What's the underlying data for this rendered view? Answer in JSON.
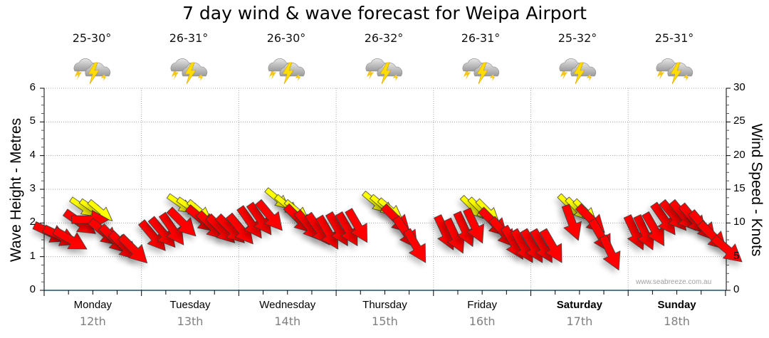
{
  "chart_data": {
    "type": "scatter",
    "title": "7 day wind & wave forecast for Weipa Airport",
    "ylabel_left": "Wave Height - Metres",
    "ylabel_right": "Wind Speed - Knots",
    "ylim_left": [
      0,
      6
    ],
    "ylim_right": [
      0,
      30
    ],
    "yticks_left": [
      "0",
      "1",
      "2",
      "3",
      "4",
      "5",
      "6"
    ],
    "yticks_right": [
      "0",
      "5",
      "10",
      "15",
      "20",
      "25",
      "30"
    ],
    "grid": true,
    "credit": "www.seabreeze.com.au",
    "days": [
      {
        "name": "Monday",
        "date": "12th",
        "temp": "25-30°",
        "icon": "thunderstorm-icon",
        "bold": false
      },
      {
        "name": "Tuesday",
        "date": "13th",
        "temp": "26-31°",
        "icon": "thunderstorm-icon",
        "bold": false
      },
      {
        "name": "Wednesday",
        "date": "14th",
        "temp": "26-30°",
        "icon": "thunderstorm-icon",
        "bold": false
      },
      {
        "name": "Thursday",
        "date": "15th",
        "temp": "26-32°",
        "icon": "thunderstorm-icon",
        "bold": false
      },
      {
        "name": "Friday",
        "date": "16th",
        "temp": "26-31°",
        "icon": "thunderstorm-icon",
        "bold": false
      },
      {
        "name": "Saturday",
        "date": "17th",
        "temp": "25-32°",
        "icon": "thunderstorm-icon",
        "bold": true
      },
      {
        "name": "Sunday",
        "date": "18th",
        "temp": "25-31°",
        "icon": "thunderstorm-icon",
        "bold": true
      }
    ],
    "series": [
      {
        "name": "Wind",
        "color": "#ff0000",
        "unit": "knots",
        "points": [
          {
            "t": 0.0,
            "v": 8.5,
            "dir": 25
          },
          {
            "t": 0.1,
            "v": 8.0,
            "dir": 25
          },
          {
            "t": 0.2,
            "v": 7.5,
            "dir": 30
          },
          {
            "t": 0.3,
            "v": 10.0,
            "dir": 35
          },
          {
            "t": 0.4,
            "v": 10.5,
            "dir": 0
          },
          {
            "t": 0.55,
            "v": 8.5,
            "dir": 40
          },
          {
            "t": 0.65,
            "v": 7.5,
            "dir": 45
          },
          {
            "t": 0.75,
            "v": 6.5,
            "dir": 45
          },
          {
            "t": 0.85,
            "v": 6.0,
            "dir": 45
          },
          {
            "t": 1.05,
            "v": 8.0,
            "dir": 50
          },
          {
            "t": 1.15,
            "v": 8.5,
            "dir": 50
          },
          {
            "t": 1.25,
            "v": 9.0,
            "dir": 55
          },
          {
            "t": 1.35,
            "v": 10.0,
            "dir": 45
          },
          {
            "t": 1.55,
            "v": 10.5,
            "dir": 40
          },
          {
            "t": 1.65,
            "v": 9.5,
            "dir": 45
          },
          {
            "t": 1.75,
            "v": 9.0,
            "dir": 45
          },
          {
            "t": 1.85,
            "v": 9.0,
            "dir": 45
          },
          {
            "t": 1.95,
            "v": 9.0,
            "dir": 50
          },
          {
            "t": 2.05,
            "v": 10.0,
            "dir": 55
          },
          {
            "t": 2.15,
            "v": 10.5,
            "dir": 55
          },
          {
            "t": 2.25,
            "v": 11.0,
            "dir": 50
          },
          {
            "t": 2.55,
            "v": 10.5,
            "dir": 45
          },
          {
            "t": 2.65,
            "v": 9.5,
            "dir": 50
          },
          {
            "t": 2.75,
            "v": 9.0,
            "dir": 55
          },
          {
            "t": 2.85,
            "v": 8.5,
            "dir": 60
          },
          {
            "t": 2.95,
            "v": 9.0,
            "dir": 60
          },
          {
            "t": 3.05,
            "v": 9.0,
            "dir": 60
          },
          {
            "t": 3.15,
            "v": 9.5,
            "dir": 60
          },
          {
            "t": 3.55,
            "v": 10.5,
            "dir": 45
          },
          {
            "t": 3.65,
            "v": 8.5,
            "dir": 55
          },
          {
            "t": 3.75,
            "v": 6.5,
            "dir": 60
          },
          {
            "t": 4.05,
            "v": 8.5,
            "dir": 65
          },
          {
            "t": 4.15,
            "v": 8.0,
            "dir": 65
          },
          {
            "t": 4.25,
            "v": 9.0,
            "dir": 65
          },
          {
            "t": 4.35,
            "v": 9.5,
            "dir": 65
          },
          {
            "t": 4.55,
            "v": 10.0,
            "dir": 45
          },
          {
            "t": 4.65,
            "v": 8.5,
            "dir": 50
          },
          {
            "t": 4.75,
            "v": 7.0,
            "dir": 60
          },
          {
            "t": 4.85,
            "v": 6.5,
            "dir": 60
          },
          {
            "t": 4.95,
            "v": 6.5,
            "dir": 60
          },
          {
            "t": 5.05,
            "v": 6.5,
            "dir": 60
          },
          {
            "t": 5.15,
            "v": 6.5,
            "dir": 60
          },
          {
            "t": 5.35,
            "v": 10.0,
            "dir": 70
          },
          {
            "t": 5.55,
            "v": 10.5,
            "dir": 45
          },
          {
            "t": 5.65,
            "v": 8.0,
            "dir": 60
          },
          {
            "t": 5.75,
            "v": 5.5,
            "dir": 65
          },
          {
            "t": 6.0,
            "v": 8.5,
            "dir": 65
          },
          {
            "t": 6.1,
            "v": 8.5,
            "dir": 65
          },
          {
            "t": 6.2,
            "v": 9.0,
            "dir": 60
          },
          {
            "t": 6.3,
            "v": 10.5,
            "dir": 55
          },
          {
            "t": 6.4,
            "v": 11.0,
            "dir": 50
          },
          {
            "t": 6.5,
            "v": 11.0,
            "dir": 50
          },
          {
            "t": 6.6,
            "v": 10.5,
            "dir": 50
          },
          {
            "t": 6.7,
            "v": 9.5,
            "dir": 50
          },
          {
            "t": 6.8,
            "v": 8.0,
            "dir": 45
          },
          {
            "t": 6.95,
            "v": 6.0,
            "dir": 40
          }
        ]
      },
      {
        "name": "Wave",
        "color": "#ffff00",
        "unit": "metres",
        "points": [
          {
            "t": 0.3,
            "h": 2.45,
            "dir": 35
          },
          {
            "t": 0.4,
            "h": 2.4,
            "dir": 35
          },
          {
            "t": 0.48,
            "h": 2.35,
            "dir": 40
          },
          {
            "t": 1.3,
            "h": 2.55,
            "dir": 35
          },
          {
            "t": 1.4,
            "h": 2.45,
            "dir": 35
          },
          {
            "t": 1.5,
            "h": 2.35,
            "dir": 40
          },
          {
            "t": 2.3,
            "h": 2.7,
            "dir": 40
          },
          {
            "t": 2.4,
            "h": 2.5,
            "dir": 40
          },
          {
            "t": 2.5,
            "h": 2.35,
            "dir": 40
          },
          {
            "t": 3.3,
            "h": 2.6,
            "dir": 40
          },
          {
            "t": 3.38,
            "h": 2.5,
            "dir": 40
          },
          {
            "t": 3.46,
            "h": 2.4,
            "dir": 40
          },
          {
            "t": 4.3,
            "h": 2.45,
            "dir": 45
          },
          {
            "t": 4.38,
            "h": 2.4,
            "dir": 45
          },
          {
            "t": 4.46,
            "h": 2.35,
            "dir": 45
          },
          {
            "t": 5.3,
            "h": 2.5,
            "dir": 45
          },
          {
            "t": 5.38,
            "h": 2.4,
            "dir": 45
          },
          {
            "t": 5.46,
            "h": 2.35,
            "dir": 45
          }
        ]
      }
    ]
  }
}
